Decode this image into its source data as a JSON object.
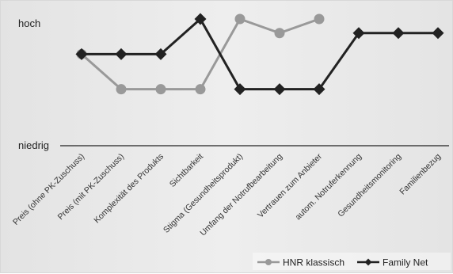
{
  "chart_data": {
    "type": "line",
    "categories": [
      "Preis (ohne PK-Zuschuss)",
      "Preis (mit PK-Zuschuss)",
      "Komplexität des Produkts",
      "Sichtbarkeit",
      "Stigma (Gesundheitsprodukt)",
      "Umfang der Notrufbearbeitung",
      "Vertrauen zum Anbieter",
      "autom. Notruferkennung",
      "Gesundheitsmonitoring",
      "Familienbezug"
    ],
    "y_labels": {
      "high": "hoch",
      "low": "niedrig"
    },
    "ylim": [
      0,
      3
    ],
    "series": [
      {
        "name": "HNR klassisch",
        "color": "#999999",
        "marker": "circle",
        "values": [
          2,
          1,
          1,
          1,
          3,
          2.6,
          3,
          null,
          null,
          null
        ]
      },
      {
        "name": "Family Net",
        "color": "#222222",
        "marker": "diamond",
        "values": [
          2,
          2,
          2,
          3,
          1,
          1,
          1,
          2.6,
          2.6,
          2.6
        ]
      }
    ],
    "legend_position": "bottom-right",
    "grid": false
  }
}
